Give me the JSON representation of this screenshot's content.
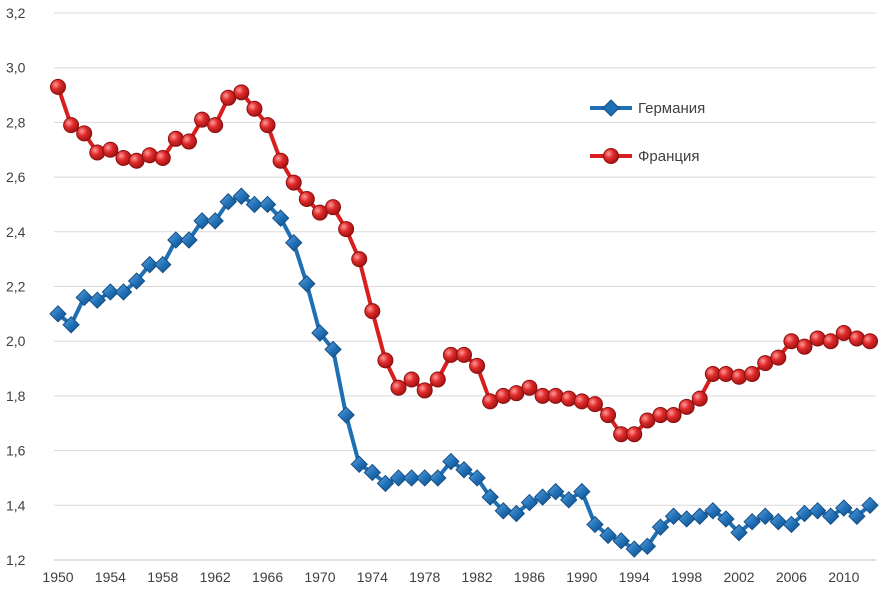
{
  "chart_data": {
    "type": "line",
    "title": "",
    "xlabel": "",
    "ylabel": "",
    "xlim": [
      1950,
      2012
    ],
    "ylim": [
      1.2,
      3.2
    ],
    "y_ticks": [
      "1,2",
      "1,4",
      "1,6",
      "1,8",
      "2,0",
      "2,2",
      "2,4",
      "2,6",
      "2,8",
      "3,0",
      "3,2"
    ],
    "x_ticks": [
      "1950",
      "1954",
      "1958",
      "1962",
      "1966",
      "1970",
      "1974",
      "1978",
      "1982",
      "1986",
      "1990",
      "1994",
      "1998",
      "2002",
      "2006",
      "2010"
    ],
    "grid": "horizontal",
    "legend_position": "top-right",
    "x": [
      1950,
      1951,
      1952,
      1953,
      1954,
      1955,
      1956,
      1957,
      1958,
      1959,
      1960,
      1961,
      1962,
      1963,
      1964,
      1965,
      1966,
      1967,
      1968,
      1969,
      1970,
      1971,
      1972,
      1973,
      1974,
      1975,
      1976,
      1977,
      1978,
      1979,
      1980,
      1981,
      1982,
      1983,
      1984,
      1985,
      1986,
      1987,
      1988,
      1989,
      1990,
      1991,
      1992,
      1993,
      1994,
      1995,
      1996,
      1997,
      1998,
      1999,
      2000,
      2001,
      2002,
      2003,
      2004,
      2005,
      2006,
      2007,
      2008,
      2009,
      2010,
      2011,
      2012
    ],
    "series": [
      {
        "name": "Германия",
        "color": "#1f6fb5",
        "marker": "diamond",
        "values": [
          2.1,
          2.06,
          2.16,
          2.15,
          2.18,
          2.18,
          2.22,
          2.28,
          2.28,
          2.37,
          2.37,
          2.44,
          2.44,
          2.51,
          2.53,
          2.5,
          2.5,
          2.45,
          2.36,
          2.21,
          2.03,
          1.97,
          1.73,
          1.55,
          1.52,
          1.48,
          1.5,
          1.5,
          1.5,
          1.5,
          1.56,
          1.53,
          1.5,
          1.43,
          1.38,
          1.37,
          1.41,
          1.43,
          1.45,
          1.42,
          1.45,
          1.33,
          1.29,
          1.27,
          1.24,
          1.25,
          1.32,
          1.36,
          1.35,
          1.36,
          1.38,
          1.35,
          1.3,
          1.34,
          1.36,
          1.34,
          1.33,
          1.37,
          1.38,
          1.36,
          1.39,
          1.36,
          1.4
        ]
      },
      {
        "name": "Франция",
        "color": "#d81e1e",
        "marker": "circle",
        "values": [
          2.93,
          2.79,
          2.76,
          2.69,
          2.7,
          2.67,
          2.66,
          2.68,
          2.67,
          2.74,
          2.73,
          2.81,
          2.79,
          2.89,
          2.91,
          2.85,
          2.79,
          2.66,
          2.58,
          2.52,
          2.47,
          2.49,
          2.41,
          2.3,
          2.11,
          1.93,
          1.83,
          1.86,
          1.82,
          1.86,
          1.95,
          1.95,
          1.91,
          1.78,
          1.8,
          1.81,
          1.83,
          1.8,
          1.8,
          1.79,
          1.78,
          1.77,
          1.73,
          1.66,
          1.66,
          1.71,
          1.73,
          1.73,
          1.76,
          1.79,
          1.88,
          1.88,
          1.87,
          1.88,
          1.92,
          1.94,
          2.0,
          1.98,
          2.01,
          2.0,
          2.03,
          2.01,
          2.0
        ]
      }
    ]
  }
}
